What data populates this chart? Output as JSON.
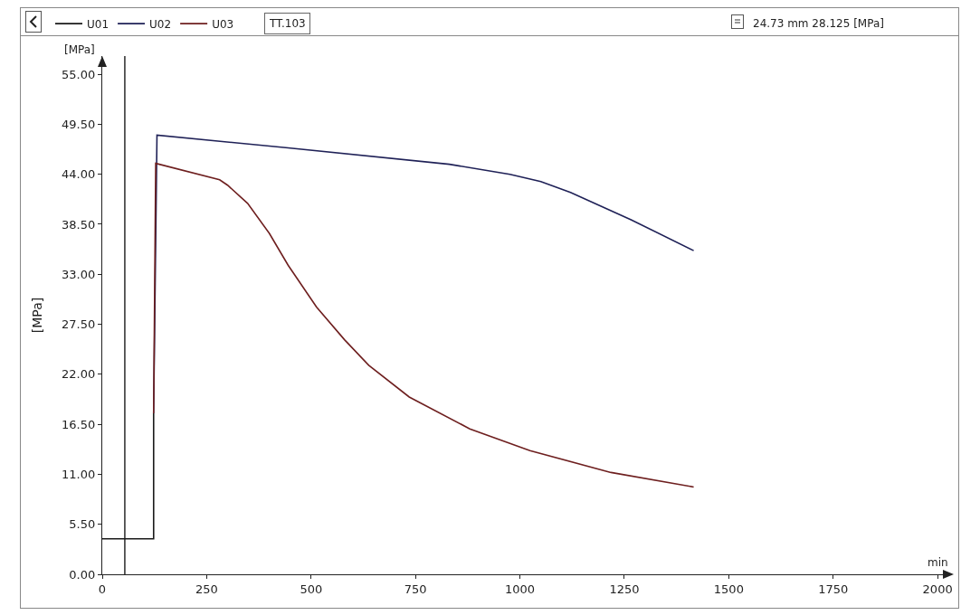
{
  "chart_data": {
    "type": "line",
    "series": [
      {
        "name": "U01",
        "color": "#1a1a1a",
        "x": [
          0,
          123,
          123
        ],
        "values": [
          3.9,
          3.9,
          17.7
        ]
      },
      {
        "name": "U02",
        "color": "#1f2157",
        "x": [
          123,
          131,
          445,
          831,
          976,
          1050,
          1121,
          1266,
          1416
        ],
        "values": [
          17.7,
          48.3,
          46.9,
          45.1,
          44.0,
          43.2,
          42.0,
          39.0,
          35.6
        ]
      },
      {
        "name": "U03",
        "color": "#6e1f1f",
        "x": [
          123,
          128,
          281,
          300,
          348,
          400,
          445,
          513,
          580,
          638,
          735,
          880,
          1024,
          1218,
          1416
        ],
        "values": [
          17.7,
          45.2,
          43.4,
          42.8,
          40.8,
          37.5,
          34.0,
          29.4,
          25.8,
          23.0,
          19.5,
          16.0,
          13.6,
          11.2,
          9.6
        ]
      }
    ],
    "xlim": [
      0,
      2030
    ],
    "xticks": [
      0,
      250,
      500,
      750,
      1000,
      1250,
      1500,
      1750,
      2000
    ],
    "ylim": [
      0,
      57
    ],
    "yticks": [
      {
        "value": 0,
        "label": "0.00"
      },
      {
        "value": 5.5,
        "label": "5.50"
      },
      {
        "value": 11,
        "label": "11.00"
      },
      {
        "value": 16.5,
        "label": "16.50"
      },
      {
        "value": 22,
        "label": "22.00"
      },
      {
        "value": 27.5,
        "label": "27.50"
      },
      {
        "value": 33,
        "label": "33.00"
      },
      {
        "value": 38.5,
        "label": "38.50"
      },
      {
        "value": 44,
        "label": "44.00"
      },
      {
        "value": 49.5,
        "label": "49.50"
      },
      {
        "value": 55,
        "label": "55.00"
      }
    ],
    "xlabel": "min",
    "ylabel": "[MPa]",
    "annotations": [
      "TT.103",
      "24.73 mm 28.125 [MPa]",
      "[MPa]"
    ],
    "ref_lines": [
      {
        "axis": "x",
        "value": 54,
        "color": "#1a1a1a"
      }
    ],
    "legend": "top left",
    "grid": false,
    "marker": "none",
    "line_style": "solid"
  }
}
